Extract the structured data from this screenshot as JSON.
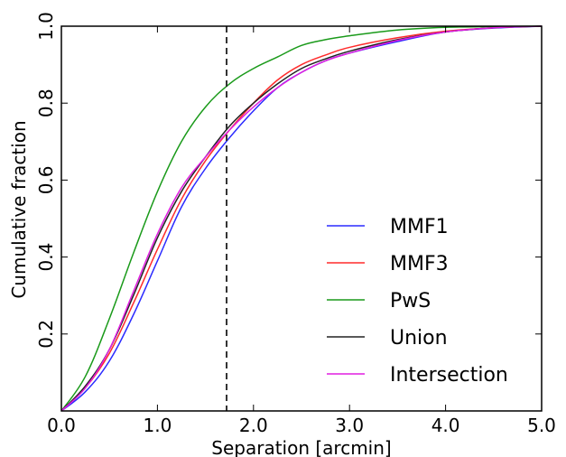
{
  "chart_data": {
    "type": "line",
    "xlabel": "Separation [arcmin]",
    "ylabel": "Cumulative fraction",
    "xlim": [
      0,
      5
    ],
    "ylim": [
      0,
      1
    ],
    "x_ticks": [
      {
        "value": 0,
        "label": "0.0"
      },
      {
        "value": 1,
        "label": "1.0"
      },
      {
        "value": 2,
        "label": "2.0"
      },
      {
        "value": 3,
        "label": "3.0"
      },
      {
        "value": 4,
        "label": "4.0"
      },
      {
        "value": 5,
        "label": "5.0"
      }
    ],
    "y_ticks": [
      {
        "value": 0.2,
        "label": "0.2"
      },
      {
        "value": 0.4,
        "label": "0.4"
      },
      {
        "value": 0.6,
        "label": "0.6"
      },
      {
        "value": 0.8,
        "label": "0.8"
      },
      {
        "value": 1.0,
        "label": "1.0"
      }
    ],
    "vline": {
      "x": 1.72,
      "style": "dashed",
      "color": "#333333"
    },
    "legend_position": "lower-right",
    "grid": false,
    "series": [
      {
        "name": "MMF1",
        "color": "#2b2bff",
        "x": [
          0,
          0.25,
          0.5,
          0.75,
          1.0,
          1.25,
          1.5,
          1.75,
          2.0,
          2.25,
          2.5,
          2.75,
          3.0,
          3.5,
          4.0,
          4.5,
          5.0
        ],
        "y": [
          0,
          0.05,
          0.13,
          0.25,
          0.39,
          0.53,
          0.63,
          0.71,
          0.78,
          0.84,
          0.88,
          0.91,
          0.93,
          0.96,
          0.985,
          0.995,
          1.0
        ]
      },
      {
        "name": "MMF3",
        "color": "#ff2b2b",
        "x": [
          0,
          0.25,
          0.5,
          0.75,
          1.0,
          1.25,
          1.5,
          1.75,
          2.0,
          2.25,
          2.5,
          2.75,
          3.0,
          3.5,
          4.0,
          4.5,
          5.0
        ],
        "y": [
          0,
          0.06,
          0.15,
          0.28,
          0.42,
          0.55,
          0.65,
          0.73,
          0.8,
          0.86,
          0.9,
          0.925,
          0.945,
          0.97,
          0.987,
          0.996,
          1.0
        ]
      },
      {
        "name": "PwS",
        "color": "#1a9a1a",
        "x": [
          0,
          0.25,
          0.5,
          0.75,
          1.0,
          1.25,
          1.5,
          1.75,
          2.0,
          2.25,
          2.5,
          2.75,
          3.0,
          3.5,
          4.0,
          4.5,
          5.0
        ],
        "y": [
          0,
          0.09,
          0.24,
          0.41,
          0.57,
          0.7,
          0.79,
          0.85,
          0.89,
          0.92,
          0.95,
          0.965,
          0.975,
          0.99,
          0.997,
          0.999,
          1.0
        ]
      },
      {
        "name": "Union",
        "color": "#222222",
        "x": [
          0,
          0.25,
          0.5,
          0.75,
          1.0,
          1.25,
          1.5,
          1.75,
          2.0,
          2.25,
          2.5,
          2.75,
          3.0,
          3.5,
          4.0,
          4.5,
          5.0
        ],
        "y": [
          0,
          0.065,
          0.16,
          0.3,
          0.45,
          0.57,
          0.66,
          0.74,
          0.8,
          0.85,
          0.89,
          0.915,
          0.935,
          0.965,
          0.985,
          0.996,
          1.0
        ]
      },
      {
        "name": "Intersection",
        "color": "#e01ee0",
        "x": [
          0,
          0.25,
          0.5,
          0.75,
          1.0,
          1.25,
          1.5,
          1.75,
          2.0,
          2.25,
          2.5,
          2.75,
          3.0,
          3.5,
          4.0,
          4.5,
          5.0
        ],
        "y": [
          0,
          0.06,
          0.16,
          0.31,
          0.46,
          0.58,
          0.66,
          0.73,
          0.79,
          0.84,
          0.88,
          0.91,
          0.93,
          0.963,
          0.985,
          0.996,
          1.0
        ]
      }
    ]
  }
}
